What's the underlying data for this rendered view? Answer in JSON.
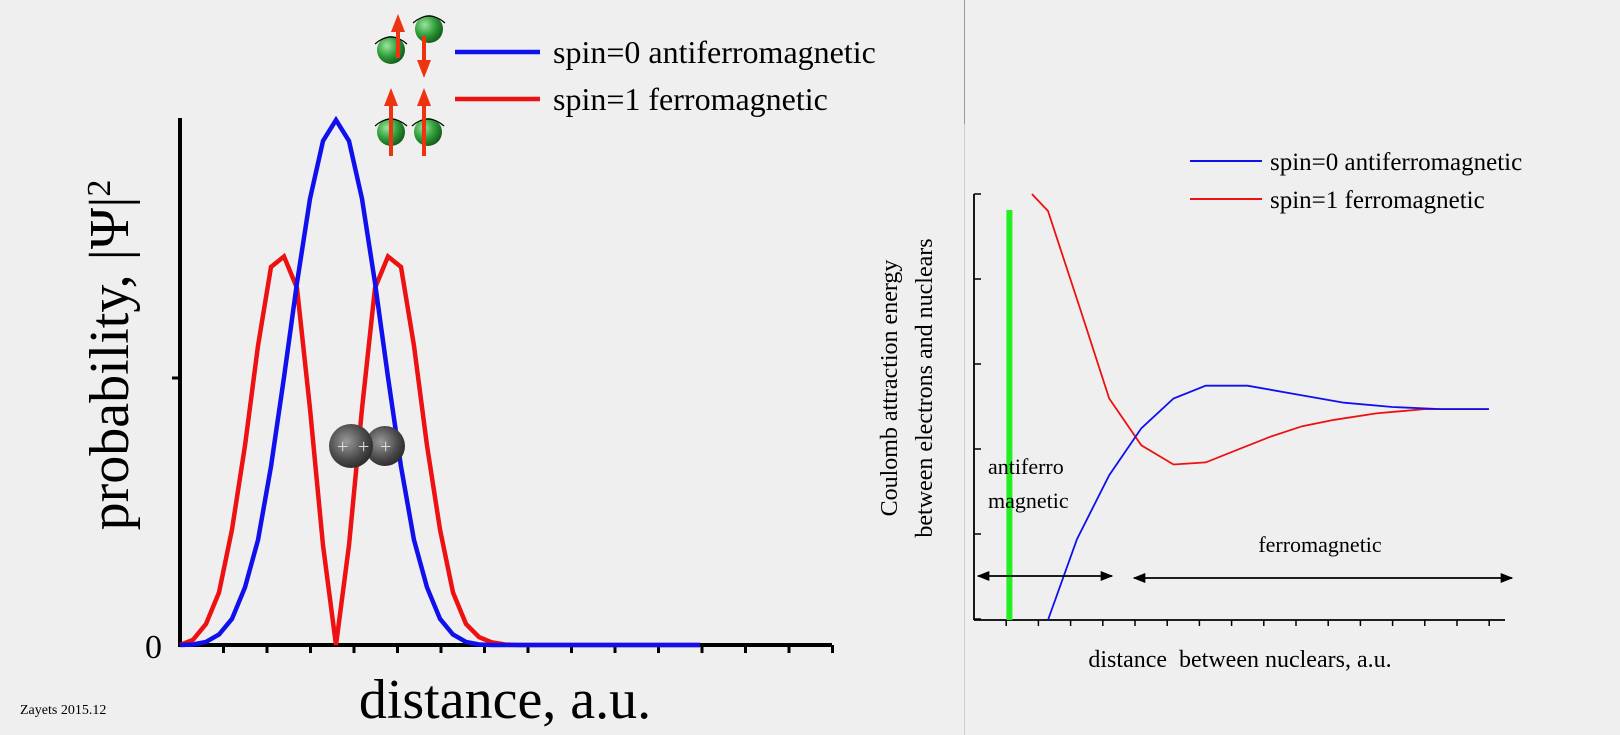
{
  "credit": "Zayets 2015.12",
  "colors": {
    "blue": "#1010ee",
    "red": "#ee1111",
    "green": "#22ee22",
    "axis": "#000000"
  },
  "chart_data": [
    {
      "type": "line",
      "xlabel": "distance, a.u.",
      "ylabel": "probability, |Ψ|",
      "ylabel_superscript": "2",
      "y_tick_labels": [
        "0"
      ],
      "xlim": [
        0,
        10
      ],
      "ylim": [
        0,
        1
      ],
      "grid": false,
      "legend_position": "top-right",
      "annotations": [
        "spin-up-down-electron-icon",
        "spin-up-up-electron-icon",
        "two-nuclei-icon"
      ],
      "series": [
        {
          "name": "spin=0 antiferromagnetic",
          "color": "#1010ee",
          "x": [
            0,
            0.25,
            0.5,
            0.75,
            1,
            1.25,
            1.5,
            1.75,
            2,
            2.25,
            2.5,
            2.75,
            3,
            3.25,
            3.5,
            3.75,
            4,
            4.25,
            4.5,
            4.75,
            5,
            5.25,
            5.5,
            5.75,
            6,
            6.25,
            6.5,
            6.75,
            7,
            7.25,
            7.5,
            7.75,
            8,
            8.25,
            8.5,
            8.75,
            9,
            9.25,
            9.5,
            9.75,
            10
          ],
          "y": [
            0,
            0.001,
            0.006,
            0.02,
            0.05,
            0.11,
            0.2,
            0.34,
            0.51,
            0.69,
            0.85,
            0.96,
            1.0,
            0.96,
            0.85,
            0.69,
            0.51,
            0.34,
            0.2,
            0.11,
            0.05,
            0.02,
            0.006,
            0.001,
            0,
            0,
            0,
            0,
            0,
            0,
            0,
            0,
            0,
            0,
            0,
            0,
            0,
            0,
            0,
            0,
            0
          ]
        },
        {
          "name": "spin=1 ferromagnetic",
          "color": "#ee1111",
          "x": [
            0,
            0.25,
            0.5,
            0.75,
            1,
            1.25,
            1.5,
            1.75,
            2,
            2.25,
            2.5,
            2.75,
            3,
            3.25,
            3.5,
            3.75,
            4,
            4.25,
            4.5,
            4.75,
            5,
            5.25,
            5.5,
            5.75,
            6,
            6.25,
            6.5,
            6.75,
            7,
            7.25,
            7.5,
            7.75,
            8,
            8.25,
            8.5,
            8.75,
            9,
            9.25,
            9.5,
            9.75,
            10
          ],
          "y": [
            0,
            0.01,
            0.04,
            0.1,
            0.22,
            0.38,
            0.57,
            0.72,
            0.74,
            0.68,
            0.45,
            0.19,
            0,
            0.19,
            0.45,
            0.68,
            0.74,
            0.72,
            0.57,
            0.38,
            0.22,
            0.1,
            0.04,
            0.015,
            0.005,
            0.001,
            0,
            0,
            0,
            0,
            0,
            0,
            0,
            0,
            0,
            0,
            0,
            0,
            0,
            0,
            0
          ]
        }
      ]
    },
    {
      "type": "line",
      "xlabel": "distance  between nuclears, a.u.",
      "ylabel": [
        "Coulomb attraction energy",
        "between electrons and nuclears"
      ],
      "xlim": [
        0,
        16.5
      ],
      "ylim": [
        0,
        10
      ],
      "grid": false,
      "legend_position": "top-right",
      "region_labels": {
        "left": [
          "antiferro",
          "magnetic"
        ],
        "right": "ferromagnetic"
      },
      "marker_line": {
        "x": 1.1,
        "color": "#22ee22"
      },
      "series": [
        {
          "name": "spin=0 antiferromagnetic",
          "color": "#1010ee",
          "x": [
            2.3,
            3.2,
            4.2,
            5.2,
            6.2,
            7.2,
            8.5,
            10,
            11.5,
            13,
            14.5,
            16
          ],
          "y": [
            0,
            1.9,
            3.4,
            4.5,
            5.2,
            5.5,
            5.5,
            5.3,
            5.1,
            5.0,
            4.95,
            4.95
          ]
        },
        {
          "name": "spin=1 ferromagnetic",
          "color": "#ee1111",
          "x": [
            1.8,
            2.3,
            3.3,
            4.2,
            5.2,
            6.2,
            7.2,
            8.2,
            9.2,
            10.2,
            11.2,
            12.5,
            14,
            16
          ],
          "y": [
            10,
            9.6,
            7.3,
            5.2,
            4.1,
            3.65,
            3.7,
            4.0,
            4.3,
            4.55,
            4.7,
            4.85,
            4.95,
            4.95
          ]
        }
      ]
    }
  ]
}
